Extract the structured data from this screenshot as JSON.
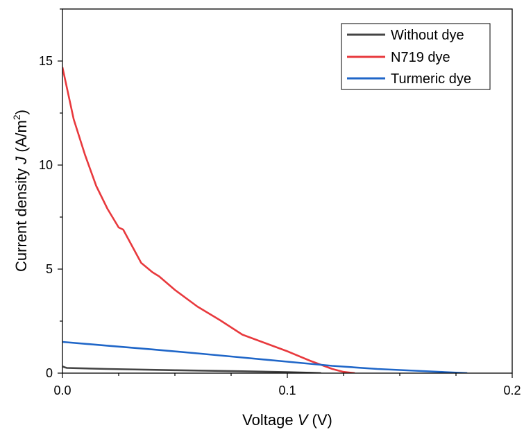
{
  "chart_data": {
    "type": "line",
    "xlabel": {
      "prefix": "Voltage ",
      "symbol": "V",
      "unit": " (V)"
    },
    "ylabel": {
      "prefix": "Current density ",
      "symbol": "J",
      "unit_open": " (A/m",
      "unit_sup": "2",
      "unit_close": ")"
    },
    "xlim": [
      0,
      0.2
    ],
    "ylim": [
      0,
      17.5
    ],
    "x_ticks": [
      {
        "value": 0,
        "label": "0.0"
      },
      {
        "value": 0.1,
        "label": "0.1"
      },
      {
        "value": 0.2,
        "label": "0.2"
      }
    ],
    "y_ticks": [
      {
        "value": 0,
        "label": "0"
      },
      {
        "value": 5,
        "label": "5"
      },
      {
        "value": 10,
        "label": "10"
      },
      {
        "value": 15,
        "label": "15"
      }
    ],
    "legend_position": "top-right",
    "grid": false,
    "series": [
      {
        "name": "Without dye",
        "color": "#444444",
        "points": [
          [
            0,
            0.32
          ],
          [
            0.001,
            0.28
          ],
          [
            0.002,
            0.25
          ],
          [
            0.02,
            0.2
          ],
          [
            0.05,
            0.14
          ],
          [
            0.08,
            0.09
          ],
          [
            0.1,
            0.05
          ],
          [
            0.11,
            0.02
          ],
          [
            0.115,
            0.0
          ]
        ]
      },
      {
        "name": "N719 dye",
        "color": "#e8393d",
        "points": [
          [
            0,
            14.7
          ],
          [
            0.005,
            12.2
          ],
          [
            0.01,
            10.5
          ],
          [
            0.015,
            9.0
          ],
          [
            0.02,
            7.9
          ],
          [
            0.025,
            7.0
          ],
          [
            0.027,
            6.9
          ],
          [
            0.03,
            6.3
          ],
          [
            0.035,
            5.3
          ],
          [
            0.04,
            4.85
          ],
          [
            0.043,
            4.65
          ],
          [
            0.05,
            4.0
          ],
          [
            0.06,
            3.2
          ],
          [
            0.07,
            2.55
          ],
          [
            0.08,
            1.85
          ],
          [
            0.09,
            1.45
          ],
          [
            0.1,
            1.05
          ],
          [
            0.11,
            0.6
          ],
          [
            0.12,
            0.2
          ],
          [
            0.125,
            0.06
          ],
          [
            0.13,
            0.0
          ]
        ]
      },
      {
        "name": "Turmeric dye",
        "color": "#1f66c8",
        "points": [
          [
            0,
            1.5
          ],
          [
            0.02,
            1.32
          ],
          [
            0.04,
            1.14
          ],
          [
            0.06,
            0.95
          ],
          [
            0.08,
            0.75
          ],
          [
            0.1,
            0.55
          ],
          [
            0.12,
            0.35
          ],
          [
            0.14,
            0.2
          ],
          [
            0.16,
            0.1
          ],
          [
            0.17,
            0.05
          ],
          [
            0.18,
            0.0
          ]
        ]
      }
    ]
  }
}
